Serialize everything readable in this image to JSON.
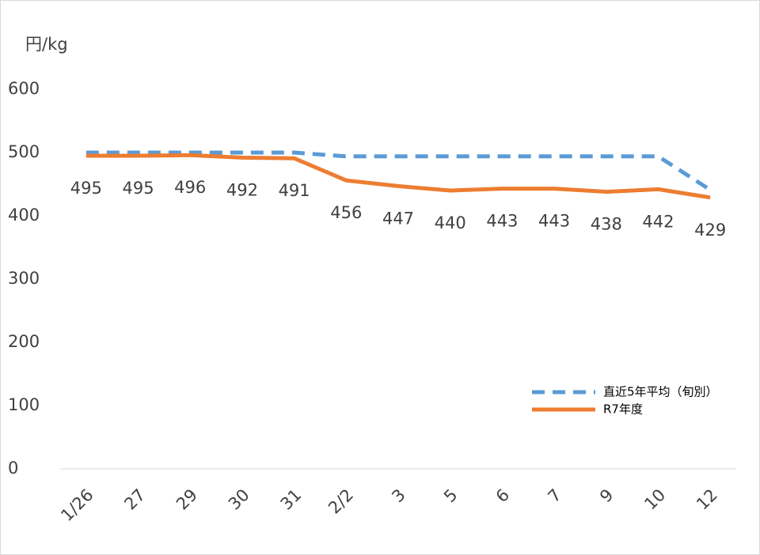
{
  "chart_data": {
    "type": "line",
    "y_label": "円/kg",
    "categories": [
      "1/26",
      "27",
      "29",
      "30",
      "31",
      "2/2",
      "3",
      "5",
      "6",
      "7",
      "9",
      "10",
      "12"
    ],
    "series": [
      {
        "name": "直近5年平均（旬別）",
        "color": "#5b9bd5",
        "dashed": true,
        "values": [
          500,
          500,
          500,
          500,
          500,
          494,
          494,
          494,
          494,
          494,
          494,
          494,
          441
        ]
      },
      {
        "name": "R7年度",
        "color": "#ed7d31",
        "dashed": false,
        "show_labels": true,
        "values": [
          495,
          495,
          496,
          492,
          491,
          456,
          447,
          440,
          443,
          443,
          438,
          442,
          429
        ]
      }
    ],
    "ylim": [
      0,
      600
    ],
    "yticks": [
      0,
      100,
      200,
      300,
      400,
      500,
      600
    ],
    "grid": false
  }
}
